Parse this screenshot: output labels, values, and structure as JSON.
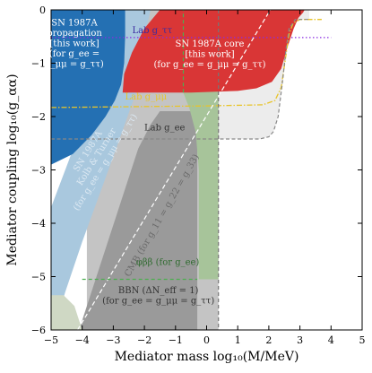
{
  "chart_data": {
    "type": "area",
    "xlabel": "Mediator mass log₁₀(M/MeV)",
    "ylabel": "Mediator coupling log₁₀(g_αα)",
    "xlim": [
      -5,
      5
    ],
    "ylim": [
      -6,
      0
    ],
    "xticks": [
      -5,
      -4,
      -3,
      -2,
      -1,
      0,
      1,
      2,
      3,
      4,
      5
    ],
    "yticks": [
      0,
      -1,
      -2,
      -3,
      -4,
      -5,
      -6
    ],
    "xtick_labels": [
      "−5",
      "−4",
      "−3",
      "−2",
      "−1",
      "0",
      "1",
      "2",
      "3",
      "4",
      "5"
    ],
    "ytick_labels": [
      "0",
      "−1",
      "−2",
      "−3",
      "−4",
      "−5",
      "−6"
    ],
    "regions": [
      {
        "name": "Lab g_ee",
        "fill": "#ececec",
        "stroke": "#888888",
        "dashed": true,
        "boundary": [
          [
            -5,
            -2.42
          ],
          [
            1.7,
            -2.42
          ],
          [
            2.0,
            -2.38
          ],
          [
            2.15,
            -2.28
          ],
          [
            2.3,
            -2.0
          ],
          [
            2.45,
            -1.3
          ],
          [
            2.55,
            -0.75
          ],
          [
            2.65,
            -0.35
          ],
          [
            2.85,
            -0.18
          ],
          [
            3.3,
            -0.18
          ],
          [
            3.3,
            0
          ],
          [
            -5,
            0
          ]
        ]
      },
      {
        "name": "BBN (ΔN_eff = 1) (for g_ee = g_μμ = g_ττ)",
        "fill": "#c4c4c4",
        "stroke": "#c4c4c4",
        "dashed": false,
        "boundary": [
          [
            -3.85,
            -6
          ],
          [
            -3.85,
            0
          ],
          [
            0.38,
            0
          ],
          [
            0.38,
            -6
          ]
        ]
      },
      {
        "name": "Kolb & Turner",
        "fill": "#a9c8de",
        "stroke": "#a9c8de",
        "dashed": false,
        "boundary": [
          [
            -5,
            -6
          ],
          [
            -5,
            -3.7
          ],
          [
            -2.6,
            0
          ],
          [
            -1.8,
            0
          ],
          [
            -2.0,
            -0.5
          ],
          [
            -2.3,
            -1.6
          ],
          [
            -3.0,
            -2.75
          ],
          [
            -4.0,
            -4.35
          ],
          [
            -4.55,
            -5.3
          ],
          [
            -4.9,
            -6
          ]
        ]
      },
      {
        "name": "SN 1987A propagation [this work] (for g_ee = g_μμ = g_ττ)",
        "fill": "#2470b3",
        "stroke": "#2470b3",
        "dashed": false,
        "boundary": [
          [
            -5,
            -2.9
          ],
          [
            -5,
            0
          ],
          [
            -2.62,
            0
          ],
          [
            -2.62,
            -0.5
          ],
          [
            -2.65,
            -1.0
          ],
          [
            -2.75,
            -1.4
          ],
          [
            -2.95,
            -1.7
          ],
          [
            -3.25,
            -2.0
          ],
          [
            -3.7,
            -2.35
          ],
          [
            -4.3,
            -2.7
          ],
          [
            -5,
            -2.9
          ]
        ]
      },
      {
        "name": "CMB (for g_11 = g_22 = g_33)",
        "fill": "#9a9a9a",
        "stroke": "#9a9a9a",
        "dashed": false,
        "boundary": [
          [
            -4.1,
            -6
          ],
          [
            -2.2,
            -2.6
          ],
          [
            -1.8,
            -2.15
          ],
          [
            -1.5,
            -1.9
          ],
          [
            -0.3,
            -1.9
          ],
          [
            -0.3,
            -6
          ]
        ]
      },
      {
        "name": "φββ (for g_ee)",
        "fill": "#a7c49a",
        "stroke": "#4caf50",
        "dashed": true,
        "boundary": [
          [
            -4.0,
            -5.05
          ],
          [
            -0.25,
            -5.05
          ],
          [
            -0.25,
            -3.0
          ],
          [
            -0.35,
            -2.3
          ],
          [
            -0.55,
            -1.85
          ],
          [
            -0.75,
            -1.55
          ],
          [
            -0.75,
            0
          ],
          [
            0.38,
            0
          ],
          [
            0.38,
            -5.05
          ]
        ]
      },
      {
        "name": "SN 1987A core [this work] (for g_ee = g_μμ = g_ττ)",
        "fill": "#d93636",
        "stroke": "#d93636",
        "dashed": false,
        "boundary": [
          [
            -2.7,
            -1.55
          ],
          [
            -0.5,
            -1.55
          ],
          [
            1.0,
            -1.52
          ],
          [
            1.6,
            -1.47
          ],
          [
            2.1,
            -1.35
          ],
          [
            2.4,
            -1.1
          ],
          [
            2.6,
            -0.7
          ],
          [
            2.8,
            -0.35
          ],
          [
            2.95,
            -0.15
          ],
          [
            3.1,
            -0.05
          ],
          [
            3.15,
            0
          ],
          [
            -1.5,
            0
          ],
          [
            -2.0,
            -0.35
          ],
          [
            -2.4,
            -0.8
          ],
          [
            -2.65,
            -1.2
          ],
          [
            -2.7,
            -1.55
          ]
        ]
      },
      {
        "name": "corner",
        "fill": "#cfd8c4",
        "stroke": "#cfd8c4",
        "dashed": false,
        "boundary": [
          [
            -5,
            -6
          ],
          [
            -5,
            -5.35
          ],
          [
            -4.6,
            -5.35
          ],
          [
            -4.25,
            -5.55
          ],
          [
            -4.0,
            -6
          ]
        ]
      }
    ],
    "lines": [
      {
        "name": "Lab g_ττ",
        "color": "#8a2be2",
        "dash": "1.5,2.5",
        "width": 1.3,
        "points": [
          [
            -5,
            -0.52
          ],
          [
            4,
            -0.52
          ]
        ]
      },
      {
        "name": "Lab g_μμ",
        "color": "#e8c42a",
        "dash": "6,2,1.5,2",
        "width": 1.3,
        "points": [
          [
            -5,
            -1.83
          ],
          [
            0,
            -1.8
          ],
          [
            1.8,
            -1.78
          ],
          [
            2.2,
            -1.7
          ],
          [
            2.4,
            -1.45
          ],
          [
            2.55,
            -0.85
          ],
          [
            2.65,
            -0.45
          ],
          [
            2.78,
            -0.25
          ],
          [
            3.0,
            -0.18
          ],
          [
            3.7,
            -0.18
          ]
        ]
      },
      {
        "name": "Lab g_ee boundary",
        "color": "#888888",
        "dash": "4,2.5",
        "width": 1.2,
        "points": [
          [
            -5,
            -2.42
          ],
          [
            1.7,
            -2.42
          ],
          [
            2.0,
            -2.38
          ],
          [
            2.15,
            -2.28
          ],
          [
            2.3,
            -2.0
          ],
          [
            2.45,
            -1.3
          ],
          [
            2.55,
            -0.75
          ],
          [
            2.65,
            -0.35
          ],
          [
            2.85,
            -0.18
          ],
          [
            3.3,
            -0.18
          ]
        ]
      },
      {
        "name": "CMB diagonal",
        "color": "#ffffff",
        "dash": "5,3",
        "width": 1.2,
        "points": [
          [
            -4.15,
            -6
          ],
          [
            2.05,
            0
          ]
        ]
      },
      {
        "name": "φββ edge",
        "color": "#4caf50",
        "dash": "4,3",
        "width": 1.2,
        "points": [
          [
            -4.0,
            -5.05
          ],
          [
            -0.3,
            -5.05
          ]
        ]
      },
      {
        "name": "φββ vertical edge",
        "color": "#4caf50",
        "dash": "4,3",
        "width": 1.2,
        "points": [
          [
            -0.75,
            -1.55
          ],
          [
            -0.75,
            0
          ]
        ]
      },
      {
        "name": "BBN edge",
        "color": "#777777",
        "dash": "4,3",
        "width": 1.2,
        "points": [
          [
            0.38,
            0
          ],
          [
            0.38,
            -6
          ]
        ]
      }
    ],
    "labels": [
      {
        "name": "lab-gtt-label",
        "lines": [
          "Lab g_ττ"
        ],
        "x": -1.75,
        "y": -0.38,
        "color": "#3a2aa0",
        "anchor": "middle",
        "rotate": 0
      },
      {
        "name": "sn-propagation-label",
        "lines": [
          "SN 1987A",
          "propagation",
          "[this work]",
          "(for g_ee =",
          "g_μμ = g_ττ)"
        ],
        "x": -4.25,
        "y": -0.62,
        "color": "#ffffff",
        "anchor": "middle",
        "rotate": 0
      },
      {
        "name": "sn-core-label",
        "lines": [
          "SN 1987A core",
          "[this work]",
          "(for g_ee = g_μμ = g_ττ)"
        ],
        "x": 0.1,
        "y": -0.82,
        "color": "#ffffff",
        "anchor": "middle",
        "rotate": 0
      },
      {
        "name": "lab-gmm-label",
        "lines": [
          "Lab g_μμ"
        ],
        "x": -1.95,
        "y": -1.62,
        "color": "#e8c42a",
        "anchor": "middle",
        "rotate": 0
      },
      {
        "name": "lab-gee-label",
        "lines": [
          "Lab g_ee"
        ],
        "x": -1.35,
        "y": -2.2,
        "color": "#333333",
        "anchor": "middle",
        "rotate": 0
      },
      {
        "name": "kolb-turner-label",
        "lines": [
          "SN 1987A",
          "Kolb & Turner",
          "(for g_ee = g_μμ = g_ττ)"
        ],
        "x": -3.55,
        "y": -2.75,
        "color": "#dbe8f2",
        "anchor": "middle",
        "rotate": -58
      },
      {
        "name": "cmb-label",
        "lines": [
          "CMB (for g_11 = g_22 = g_33)"
        ],
        "x": -1.45,
        "y": -3.85,
        "color": "#6b6b6b",
        "anchor": "middle",
        "rotate": -60
      },
      {
        "name": "phibb-label",
        "lines": [
          "φββ (for g_ee)"
        ],
        "x": -1.25,
        "y": -4.72,
        "color": "#2f6b2f",
        "anchor": "middle",
        "rotate": 0
      },
      {
        "name": "bbn-label",
        "lines": [
          "BBN (ΔN_eff = 1)",
          "(for g_ee = g_μμ = g_ττ)"
        ],
        "x": -1.55,
        "y": -5.35,
        "color": "#333333",
        "anchor": "middle",
        "rotate": 0
      }
    ]
  }
}
